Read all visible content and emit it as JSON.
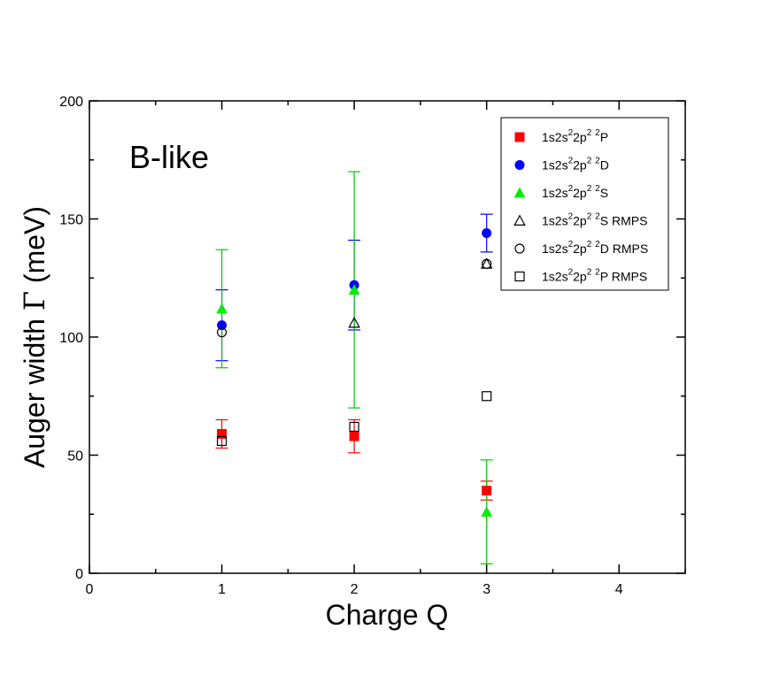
{
  "chart_data": {
    "type": "scatter",
    "annotation": "B-like",
    "xlabel": "Charge Q",
    "ylabel_prefix": "Auger width ",
    "ylabel_symbol": "Γ",
    "ylabel_suffix": " (meV)",
    "xlim": [
      0,
      4.5
    ],
    "ylim": [
      0,
      200
    ],
    "xticks": [
      0,
      1,
      2,
      3,
      4
    ],
    "yticks": [
      0,
      50,
      100,
      150,
      200
    ],
    "grid": false,
    "legend_position": "top-right",
    "series": [
      {
        "name": "1s2s22p2 2P",
        "legend": {
          "base": "1s2s",
          "s1": "2",
          "mid": "2p",
          "s2": "2",
          "s3": "2",
          "term": "P",
          "suffix": ""
        },
        "marker": "square",
        "filled": true,
        "color": "#ff0000",
        "error_color": "#ff0000",
        "points": [
          {
            "x": 1,
            "y": 59,
            "ylow": 53,
            "yhigh": 65
          },
          {
            "x": 2,
            "y": 58,
            "ylow": 51,
            "yhigh": 65
          },
          {
            "x": 3,
            "y": 35,
            "ylow": 31,
            "yhigh": 39
          }
        ]
      },
      {
        "name": "1s2s22p2 2D",
        "legend": {
          "base": "1s2s",
          "s1": "2",
          "mid": "2p",
          "s2": "2",
          "s3": "2",
          "term": "D",
          "suffix": ""
        },
        "marker": "circle",
        "filled": true,
        "color": "#0000ff",
        "error_color": "#0000ff",
        "points": [
          {
            "x": 1,
            "y": 105,
            "ylow": 90,
            "yhigh": 120
          },
          {
            "x": 2,
            "y": 122,
            "ylow": 103,
            "yhigh": 141
          },
          {
            "x": 3,
            "y": 144,
            "ylow": 136,
            "yhigh": 152
          }
        ]
      },
      {
        "name": "1s2s22p2 2S",
        "legend": {
          "base": "1s2s",
          "s1": "2",
          "mid": "2p",
          "s2": "2",
          "s3": "2",
          "term": "S",
          "suffix": ""
        },
        "marker": "triangle",
        "filled": true,
        "color": "#00ee00",
        "error_color": "#00cc00",
        "points": [
          {
            "x": 1,
            "y": 112,
            "ylow": 87,
            "yhigh": 137
          },
          {
            "x": 2,
            "y": 120,
            "ylow": 70,
            "yhigh": 170
          },
          {
            "x": 3,
            "y": 26,
            "ylow": 4,
            "yhigh": 48
          }
        ]
      },
      {
        "name": "1s2s22p2 2S RMPS",
        "legend": {
          "base": "1s2s",
          "s1": "2",
          "mid": "2p",
          "s2": "2",
          "s3": "2",
          "term": "S",
          "suffix": " RMPS"
        },
        "marker": "triangle",
        "filled": false,
        "color": "#000000",
        "points": [
          {
            "x": 2,
            "y": 106
          },
          {
            "x": 3,
            "y": 131
          }
        ]
      },
      {
        "name": "1s2s22p2 2D RMPS",
        "legend": {
          "base": "1s2s",
          "s1": "2",
          "mid": "2p",
          "s2": "2",
          "s3": "2",
          "term": "D",
          "suffix": " RMPS"
        },
        "marker": "circle",
        "filled": false,
        "color": "#000000",
        "points": [
          {
            "x": 1,
            "y": 102
          },
          {
            "x": 3,
            "y": 131
          }
        ]
      },
      {
        "name": "1s2s22p2 2P RMPS",
        "legend": {
          "base": "1s2s",
          "s1": "2",
          "mid": "2p",
          "s2": "2",
          "s3": "2",
          "term": "P",
          "suffix": " RMPS"
        },
        "marker": "square",
        "filled": false,
        "color": "#000000",
        "points": [
          {
            "x": 1,
            "y": 56
          },
          {
            "x": 2,
            "y": 62
          },
          {
            "x": 3,
            "y": 75
          }
        ]
      }
    ]
  }
}
